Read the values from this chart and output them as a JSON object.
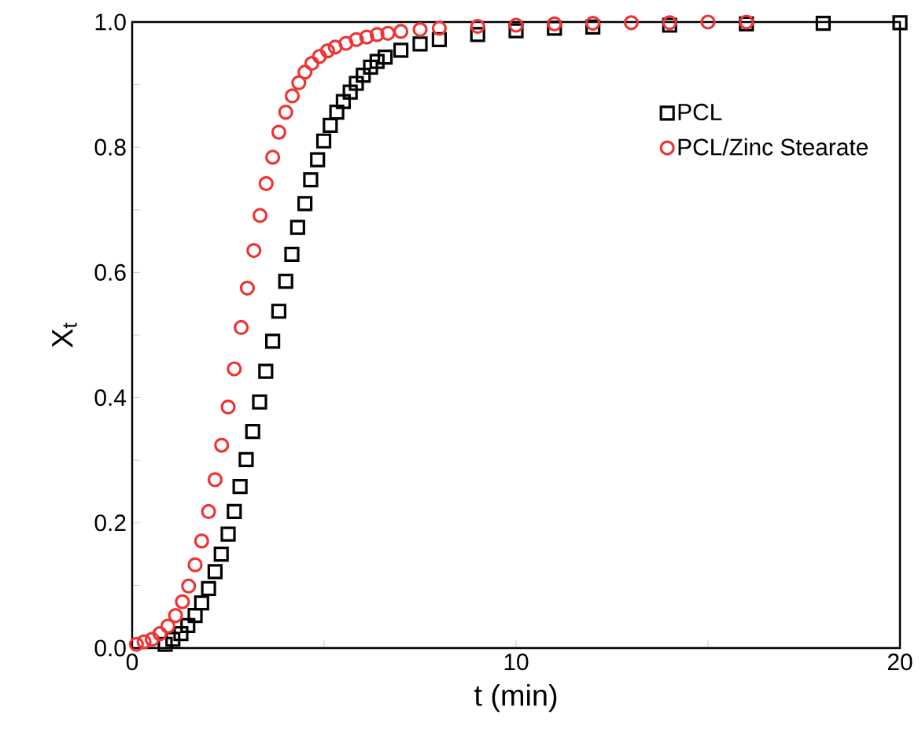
{
  "chart_data": {
    "type": "scatter",
    "xlabel": "t (min)",
    "ylabel": "X$_{t}$",
    "xlim": [
      0,
      20
    ],
    "ylim": [
      0,
      1.0
    ],
    "xticks": [
      0,
      {
        "value": 5,
        "label": null
      },
      10,
      {
        "value": 15,
        "label": null
      },
      20
    ],
    "yticks": [
      "0.0",
      {
        "value": 0.1,
        "label": null
      },
      0.2,
      {
        "value": 0.3,
        "label": null
      },
      0.4,
      {
        "value": 0.5,
        "label": null
      },
      0.6,
      {
        "value": 0.7,
        "label": null
      },
      0.8,
      {
        "value": 0.9,
        "label": null
      },
      "1.0"
    ],
    "legend": "top right",
    "grid": false,
    "series": [
      {
        "name": "PCL",
        "color": "#000000",
        "marker": "square",
        "x": [
          0.86,
          1.06,
          1.27,
          1.45,
          1.64,
          1.81,
          1.99,
          2.16,
          2.32,
          2.5,
          2.66,
          2.81,
          2.97,
          3.14,
          3.32,
          3.48,
          3.66,
          3.82,
          4.0,
          4.16,
          4.31,
          4.5,
          4.65,
          4.83,
          4.99,
          5.16,
          5.33,
          5.5,
          5.68,
          5.84,
          6.02,
          6.21,
          6.38,
          6.59,
          7.0,
          7.5,
          8.0,
          9.0,
          10.0,
          11.0,
          12.0,
          14.0,
          16.0,
          18.0,
          20.0
        ],
        "values": [
          0.006,
          0.014,
          0.023,
          0.036,
          0.052,
          0.072,
          0.095,
          0.122,
          0.15,
          0.182,
          0.218,
          0.258,
          0.301,
          0.346,
          0.393,
          0.442,
          0.49,
          0.538,
          0.586,
          0.629,
          0.672,
          0.71,
          0.748,
          0.78,
          0.81,
          0.835,
          0.856,
          0.873,
          0.888,
          0.902,
          0.915,
          0.928,
          0.937,
          0.944,
          0.955,
          0.965,
          0.972,
          0.98,
          0.986,
          0.99,
          0.992,
          0.995,
          0.997,
          0.998,
          0.999
        ]
      },
      {
        "name": "PCL/Zinc Stearate",
        "color": "#ee3333",
        "marker": "circle",
        "x": [
          0.11,
          0.31,
          0.52,
          0.72,
          0.93,
          1.13,
          1.31,
          1.47,
          1.64,
          1.81,
          1.99,
          2.16,
          2.33,
          2.5,
          2.66,
          2.84,
          3.0,
          3.17,
          3.33,
          3.49,
          3.66,
          3.82,
          4.0,
          4.17,
          4.34,
          4.5,
          4.68,
          4.88,
          5.09,
          5.29,
          5.57,
          5.84,
          6.11,
          6.38,
          6.66,
          7.0,
          7.5,
          8.0,
          9.0,
          10.0,
          11.0,
          12.0,
          13.0,
          14.0,
          15.0,
          16.0
        ],
        "values": [
          0.006,
          0.01,
          0.014,
          0.023,
          0.035,
          0.052,
          0.074,
          0.099,
          0.133,
          0.171,
          0.218,
          0.269,
          0.324,
          0.385,
          0.446,
          0.512,
          0.575,
          0.635,
          0.691,
          0.742,
          0.784,
          0.824,
          0.856,
          0.882,
          0.903,
          0.92,
          0.934,
          0.945,
          0.954,
          0.96,
          0.966,
          0.972,
          0.976,
          0.98,
          0.982,
          0.985,
          0.988,
          0.99,
          0.993,
          0.995,
          0.997,
          0.998,
          0.999,
          0.999,
          1.0,
          1.0
        ]
      }
    ]
  }
}
